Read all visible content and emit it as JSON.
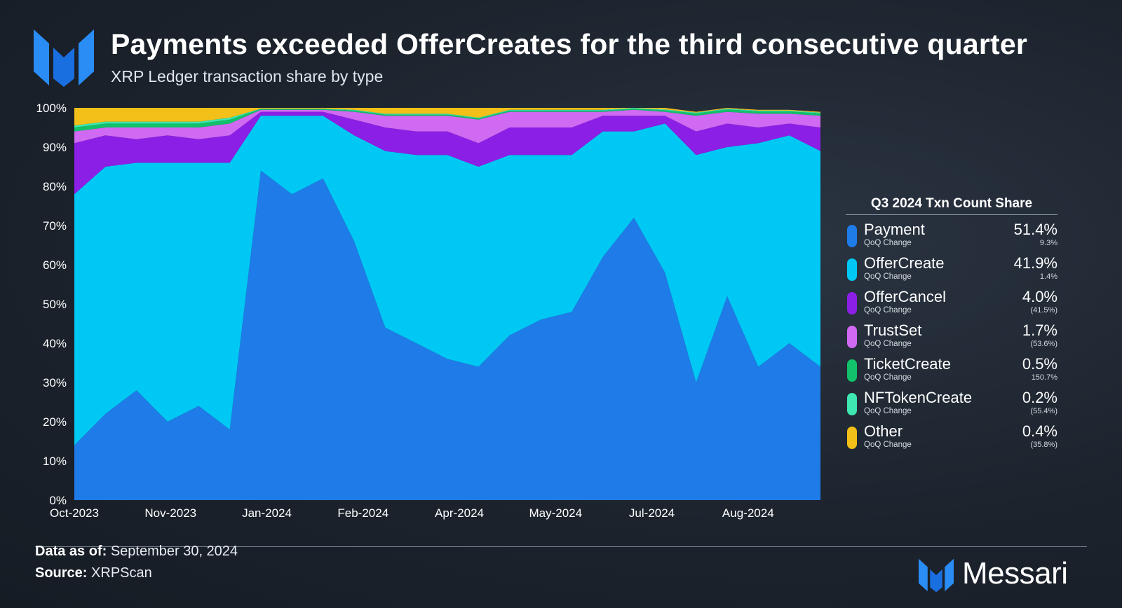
{
  "header": {
    "title": "Payments exceeded OfferCreates for the third consecutive quarter",
    "subtitle": "XRP Ledger transaction share by type"
  },
  "legend": {
    "title": "Q3 2024 Txn Count Share",
    "items": [
      {
        "name": "Payment",
        "sub": "QoQ Change",
        "value": "51.4%",
        "change": "9.3%",
        "color": "#1e7be8"
      },
      {
        "name": "OfferCreate",
        "sub": "QoQ Change",
        "value": "41.9%",
        "change": "1.4%",
        "color": "#00c8f5"
      },
      {
        "name": "OfferCancel",
        "sub": "QoQ Change",
        "value": "4.0%",
        "change": "(41.5%)",
        "color": "#8c1fe6"
      },
      {
        "name": "TrustSet",
        "sub": "QoQ Change",
        "value": "1.7%",
        "change": "(53.6%)",
        "color": "#d06af2"
      },
      {
        "name": "TicketCreate",
        "sub": "QoQ Change",
        "value": "0.5%",
        "change": "150.7%",
        "color": "#12c16a"
      },
      {
        "name": "NFTokenCreate",
        "sub": "QoQ Change",
        "value": "0.2%",
        "change": "(55.4%)",
        "color": "#3ee8b0"
      },
      {
        "name": "Other",
        "sub": "QoQ Change",
        "value": "0.4%",
        "change": "(35.8%)",
        "color": "#f2c018"
      }
    ]
  },
  "footer": {
    "data_as_of_label": "Data as of:",
    "data_as_of_value": "September 30, 2024",
    "source_label": "Source:",
    "source_value": "XRPScan",
    "brand": "Messari"
  },
  "chart_data": {
    "type": "area",
    "stacked": true,
    "ylim": [
      0,
      100
    ],
    "yticks": [
      "0%",
      "10%",
      "20%",
      "30%",
      "40%",
      "50%",
      "60%",
      "70%",
      "80%",
      "90%",
      "100%"
    ],
    "xticks": [
      "Oct-2023",
      "Nov-2023",
      "Jan-2024",
      "Feb-2024",
      "Apr-2024",
      "May-2024",
      "Jul-2024",
      "Aug-2024"
    ],
    "grid": false,
    "x": [
      "2023-10-01",
      "2023-10-15",
      "2023-11-01",
      "2023-11-15",
      "2023-12-01",
      "2023-12-15",
      "2024-01-01",
      "2024-01-15",
      "2024-02-01",
      "2024-02-15",
      "2024-03-01",
      "2024-03-15",
      "2024-04-01",
      "2024-04-15",
      "2024-05-01",
      "2024-05-15",
      "2024-06-01",
      "2024-06-15",
      "2024-07-01",
      "2024-07-15",
      "2024-08-01",
      "2024-08-15",
      "2024-09-01",
      "2024-09-15",
      "2024-09-30"
    ],
    "series": [
      {
        "name": "Payment",
        "color": "#1e7be8",
        "values": [
          14,
          22,
          28,
          20,
          24,
          18,
          84,
          78,
          82,
          66,
          44,
          40,
          36,
          34,
          42,
          46,
          48,
          62,
          72,
          58,
          30,
          52,
          34,
          40,
          34
        ]
      },
      {
        "name": "OfferCreate",
        "color": "#00c8f5",
        "values": [
          64,
          63,
          58,
          66,
          62,
          68,
          14,
          20,
          16,
          27,
          45,
          48,
          52,
          51,
          46,
          42,
          40,
          32,
          22,
          38,
          58,
          38,
          57,
          53,
          55
        ]
      },
      {
        "name": "OfferCancel",
        "color": "#8c1fe6",
        "values": [
          13,
          8,
          6,
          7,
          6,
          7,
          1,
          1,
          1,
          4,
          6,
          6,
          6,
          6,
          7,
          7,
          7,
          4,
          4,
          2,
          6,
          6,
          4,
          3,
          6
        ]
      },
      {
        "name": "TrustSet",
        "color": "#d06af2",
        "values": [
          3,
          2,
          3,
          2,
          3,
          3,
          0.5,
          0.5,
          0.5,
          2,
          3,
          4,
          4,
          6,
          4,
          4,
          4,
          1,
          1.5,
          1,
          4,
          3,
          3.5,
          2.5,
          3
        ]
      },
      {
        "name": "TicketCreate",
        "color": "#12c16a",
        "values": [
          1,
          1,
          1,
          1,
          1,
          1,
          0.2,
          0.2,
          0.2,
          0.3,
          0.3,
          0.3,
          0.3,
          0.3,
          0.3,
          0.3,
          0.3,
          0.3,
          0.3,
          0.4,
          0.6,
          0.6,
          0.6,
          0.6,
          0.6
        ]
      },
      {
        "name": "NFTokenCreate",
        "color": "#3ee8b0",
        "values": [
          0.5,
          0.5,
          0.5,
          0.5,
          0.5,
          0.5,
          0.1,
          0.1,
          0.1,
          0.2,
          0.2,
          0.2,
          0.2,
          0.2,
          0.2,
          0.2,
          0.2,
          0.2,
          0.2,
          0.2,
          0.2,
          0.2,
          0.2,
          0.2,
          0.2
        ]
      },
      {
        "name": "Other",
        "color": "#f2c018",
        "values": [
          4.5,
          3.5,
          3.5,
          3.5,
          3.5,
          2.5,
          0.2,
          0.2,
          0.2,
          0.5,
          1.5,
          1.5,
          1.5,
          2.5,
          0.5,
          0.5,
          0.5,
          0.5,
          0.5,
          0.4,
          0.2,
          0.2,
          0.2,
          0.2,
          0.2
        ]
      }
    ]
  }
}
